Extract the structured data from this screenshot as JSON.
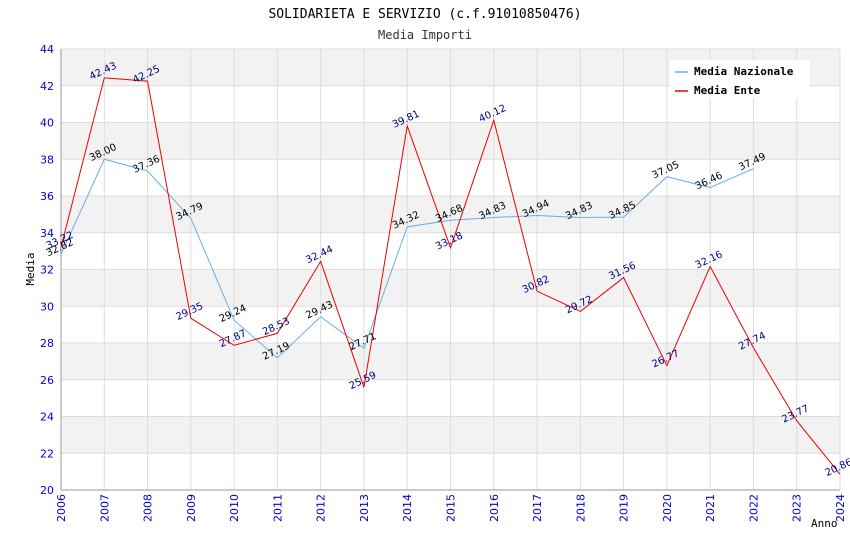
{
  "chart_data": {
    "type": "line",
    "title": "SOLIDARIETA E SERVIZIO (c.f.91010850476)",
    "subtitle": "Media Importi",
    "ylabel": "Media",
    "xlabel": "Anno",
    "ylim": [
      20,
      44
    ],
    "yticks": [
      "20",
      "22",
      "24",
      "26",
      "28",
      "30",
      "32",
      "34",
      "36",
      "38",
      "40",
      "42",
      "44"
    ],
    "categories": [
      "2006",
      "2007",
      "2008",
      "2009",
      "2010",
      "2011",
      "2012",
      "2013",
      "2014",
      "2015",
      "2016",
      "2017",
      "2018",
      "2019",
      "2020",
      "2021",
      "2022",
      "2023",
      "2024"
    ],
    "series": [
      {
        "name": "Media Nazionale",
        "color": "#6aaee8",
        "values": [
          32.82,
          38.0,
          37.36,
          34.79,
          29.24,
          27.19,
          29.43,
          27.71,
          34.32,
          34.68,
          34.83,
          34.94,
          34.83,
          34.85,
          37.05,
          36.46,
          37.49,
          null,
          null
        ],
        "labels": [
          "32.82",
          "38.00",
          "37.36",
          "34.79",
          "29.24",
          "27.19",
          "29.43",
          "27.71",
          "34.32",
          "34.68",
          "34.83",
          "34.94",
          "34.83",
          "34.85",
          "37.05",
          "36.46",
          "37.49",
          "",
          ""
        ]
      },
      {
        "name": "Media Ente",
        "color": "#ee0000",
        "values": [
          33.22,
          42.43,
          42.25,
          29.35,
          27.87,
          28.53,
          32.44,
          25.59,
          39.81,
          33.18,
          40.12,
          30.82,
          29.72,
          31.56,
          26.77,
          32.16,
          27.74,
          23.77,
          20.86
        ],
        "labels": [
          "33.22",
          "42.43",
          "42.25",
          "29.35",
          "27.87",
          "28.53",
          "32.44",
          "25.59",
          "39.81",
          "33.18",
          "40.12",
          "30.82",
          "29.72",
          "31.56",
          "26.77",
          "32.16",
          "27.74",
          "23.77",
          "20.86"
        ]
      }
    ],
    "legend_position": "top-right",
    "grid": true
  }
}
